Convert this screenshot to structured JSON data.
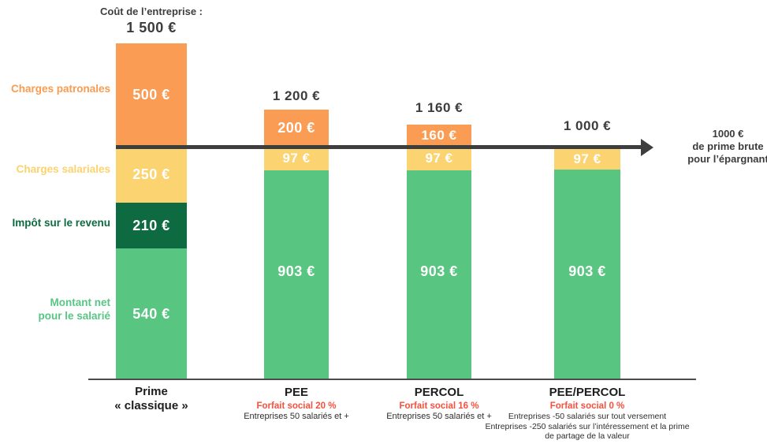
{
  "header": {
    "cost_label": "Coût de l’entreprise  :",
    "cost_value": "1 500 €"
  },
  "legend": {
    "charges_patronales": "Charges patronales",
    "charges_salariales": "Charges salariales",
    "impot": "Impôt sur le revenu",
    "montant_net_line1": "Montant net",
    "montant_net_line2": "pour le salarié"
  },
  "bars": {
    "bar1": {
      "seg_orange": "500 €",
      "seg_yellow": "250 €",
      "seg_darkgreen": "210 €",
      "seg_green": "540 €",
      "label_line1": "Prime",
      "label_line2": "« classique »"
    },
    "bar2": {
      "total": "1 200 €",
      "seg_orange": "200 €",
      "seg_yellow": "97 €",
      "seg_green": "903 €",
      "label": "PEE",
      "forfait": "Forfait social 20 %",
      "note": "Entreprises 50 salariés et +"
    },
    "bar3": {
      "total": "1 160 €",
      "seg_orange": "160 €",
      "seg_yellow": "97 €",
      "seg_green": "903 €",
      "label": "PERCOL",
      "forfait": "Forfait social 16 %",
      "note": "Entreprises 50 salariés et +"
    },
    "bar4": {
      "total": "1 000 €",
      "seg_yellow": "97 €",
      "seg_green": "903 €",
      "label": "PEE/PERCOL",
      "forfait": "Forfait social 0 %",
      "note_line1": "Entreprises  -50 salariés sur tout versement",
      "note_line2": "Entreprises -250 salariés sur l’intéressement et la prime de partage de la valeur"
    }
  },
  "arrow_note": {
    "line1": "1000 €",
    "line2": "de prime brute",
    "line3": "pour l’épargnant"
  },
  "colors": {
    "orange": "#fa9c53",
    "yellow": "#fbd471",
    "dark_green": "#0e6b41",
    "green": "#58c580",
    "red": "#f94f3d",
    "arrow_dark": "#3e3e3e"
  },
  "chart_data": {
    "type": "bar",
    "stacked": true,
    "title": "Coût de l’entreprise : 1 500 €",
    "categories": [
      "Prime « classique »",
      "PEE",
      "PERCOL",
      "PEE/PERCOL"
    ],
    "series": [
      {
        "name": "Charges patronales",
        "color": "#fa9c53",
        "values": [
          500,
          200,
          160,
          0
        ]
      },
      {
        "name": "Charges salariales",
        "color": "#fbd471",
        "values": [
          250,
          97,
          97,
          97
        ]
      },
      {
        "name": "Impôt sur le revenu",
        "color": "#0e6b41",
        "values": [
          210,
          0,
          0,
          0
        ]
      },
      {
        "name": "Montant net pour le salarié",
        "color": "#58c580",
        "values": [
          540,
          903,
          903,
          903
        ]
      }
    ],
    "totals": [
      1500,
      1200,
      1160,
      1000
    ],
    "reference_line": {
      "value": 1000,
      "label": "1000 € de prime brute pour l’épargnant"
    },
    "category_subtitles": [
      "",
      "Forfait social 20 % — Entreprises 50 salariés et +",
      "Forfait social 16 % — Entreprises 50 salariés et +",
      "Forfait social 0 % — Entreprises -50 salariés sur tout versement ; Entreprises -250 salariés sur l’intéressement et la prime de partage de la valeur"
    ],
    "legend_position": "left",
    "grid": false,
    "ylim": [
      0,
      1500
    ]
  }
}
